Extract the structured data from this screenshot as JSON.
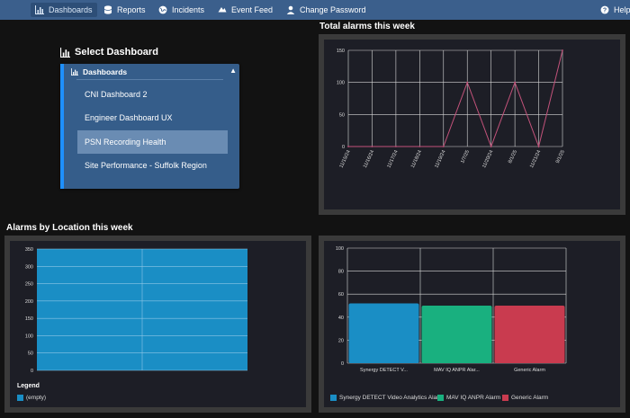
{
  "nav": {
    "items": [
      {
        "label": "Dashboards",
        "icon": "bar-chart-icon"
      },
      {
        "label": "Reports",
        "icon": "database-icon"
      },
      {
        "label": "Incidents",
        "icon": "globe-icon"
      },
      {
        "label": "Event Feed",
        "icon": "event-feed-icon"
      },
      {
        "label": "Change Password",
        "icon": "user-icon"
      }
    ],
    "help": "Help"
  },
  "select_dashboard": {
    "title": "Select Dashboard",
    "header": "Dashboards",
    "items": [
      "CNI Dashboard 2",
      "Engineer Dashboard UX",
      "PSN Recording Health",
      "Site Performance - Suffolk Region"
    ],
    "selected": "PSN Recording Health"
  },
  "sections": {
    "total_alarms": "Total alarms this week",
    "alarms_by_location": "Alarms by Location this week"
  },
  "colors": {
    "nav_bg": "#3b5f8c",
    "line": "#c2527a",
    "bar_blue": "#1a8ec5",
    "bar_green": "#19b07f",
    "bar_red": "#c93b4f"
  },
  "chart_data": [
    {
      "type": "line",
      "title": "Total alarms this week",
      "x": [
        "11/15/24",
        "11/16/24",
        "11/17/24",
        "11/18/24",
        "11/19/24",
        "1/7/25",
        "11/20/24",
        "8/1/25",
        "11/21/24",
        "9/1/25"
      ],
      "series": [
        {
          "values": [
            0,
            0,
            0,
            0,
            0,
            100,
            0,
            100,
            0,
            150
          ]
        }
      ],
      "ylim": [
        0,
        150
      ],
      "yticks": [
        0,
        50,
        100,
        150
      ],
      "grid": true
    },
    {
      "type": "bar",
      "title": "Alarms by Location this week",
      "categories": [
        ""
      ],
      "series": [
        {
          "name": "(empty)",
          "values": [
            350
          ]
        }
      ],
      "ylim": [
        0,
        350
      ],
      "yticks": [
        0,
        50,
        100,
        150,
        200,
        250,
        300,
        350
      ],
      "grid": true,
      "legend_title": "Legend",
      "legend": [
        "(empty)"
      ]
    },
    {
      "type": "bar",
      "categories": [
        "Synergy DETECT V...",
        "MAV IQ ANPR Alar...",
        "Generic Alarm"
      ],
      "values": [
        52,
        50,
        50
      ],
      "ylim": [
        0,
        100
      ],
      "yticks": [
        0,
        20,
        40,
        60,
        80,
        100
      ],
      "grid": true,
      "legend": [
        "Synergy DETECT Video Analytics Alarm",
        "MAV IQ ANPR Alarm",
        "Generic Alarm"
      ]
    }
  ]
}
